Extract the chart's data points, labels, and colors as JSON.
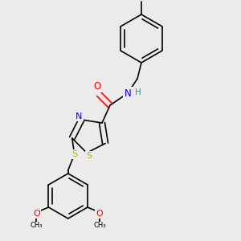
{
  "background_color": "#ebebeb",
  "bond_width": 1.2,
  "atom_colors": {
    "N": "#0000FF",
    "O": "#FF0000",
    "S": "#CCAA00",
    "H": "#00AAAA"
  },
  "figsize": [
    3.0,
    3.0
  ],
  "dpi": 100
}
